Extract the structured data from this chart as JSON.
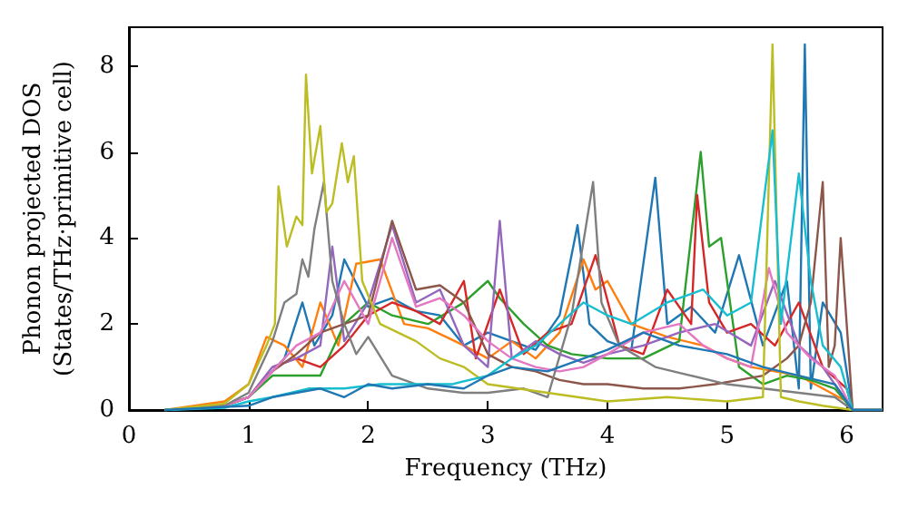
{
  "chart_data": {
    "type": "line",
    "xlabel": "Frequency (THz)",
    "ylabel": "Phonon projected DOS\n(States/THz·primitive cell)",
    "xlim": [
      0,
      6.3
    ],
    "xticks": [
      0,
      1,
      2,
      3,
      4,
      5,
      6
    ],
    "ylim": [
      0,
      8.9
    ],
    "yticks": [
      0,
      2,
      4,
      6,
      8
    ],
    "grid": false,
    "marker": "none",
    "line_style": "solid",
    "series": [
      {
        "color": "#1f77b4",
        "x": [
          0.3,
          0.8,
          1.0,
          1.2,
          1.3,
          1.45,
          1.55,
          1.7,
          1.8,
          2.0,
          2.2,
          2.4,
          2.6,
          2.8,
          3.0,
          3.2,
          3.4,
          3.6,
          3.75,
          3.85,
          4.0,
          4.2,
          4.4,
          4.5,
          4.7,
          4.9,
          5.1,
          5.3,
          5.5,
          5.6,
          5.65,
          5.7,
          5.8,
          5.95,
          6.05,
          6.3
        ],
        "values": [
          0,
          0.1,
          0.3,
          0.9,
          1.2,
          2.5,
          1.5,
          2.2,
          3.5,
          2.4,
          2.6,
          2.3,
          2.2,
          1.5,
          1.8,
          1.6,
          1.4,
          2.2,
          4.3,
          2.0,
          1.6,
          1.4,
          5.4,
          2.0,
          2.4,
          1.8,
          3.6,
          1.5,
          3.0,
          0.5,
          8.5,
          0.5,
          2.5,
          1.8,
          0,
          0
        ]
      },
      {
        "color": "#ff7f0e",
        "x": [
          0.3,
          0.8,
          1.0,
          1.15,
          1.3,
          1.45,
          1.6,
          1.75,
          1.9,
          2.1,
          2.3,
          2.5,
          2.8,
          3.0,
          3.2,
          3.4,
          3.6,
          3.8,
          3.9,
          4.0,
          4.2,
          4.5,
          4.8,
          5.0,
          5.2,
          5.4,
          5.6,
          5.8,
          6.0,
          6.05,
          6.3
        ],
        "values": [
          0,
          0.2,
          0.6,
          1.7,
          1.5,
          1.0,
          2.5,
          1.5,
          3.4,
          3.5,
          2.0,
          1.9,
          1.5,
          1.2,
          1.6,
          1.2,
          1.8,
          3.5,
          2.8,
          3.0,
          2.0,
          1.7,
          1.5,
          1.2,
          1.0,
          0.9,
          0.8,
          0.5,
          0.2,
          0,
          0
        ]
      },
      {
        "color": "#2ca02c",
        "x": [
          0.3,
          0.8,
          1.0,
          1.2,
          1.4,
          1.6,
          1.8,
          2.0,
          2.2,
          2.5,
          2.8,
          3.0,
          3.1,
          3.3,
          3.5,
          3.7,
          4.0,
          4.3,
          4.6,
          4.78,
          4.85,
          4.95,
          5.1,
          5.3,
          5.5,
          5.7,
          5.9,
          6.05,
          6.3
        ],
        "values": [
          0,
          0.1,
          0.3,
          0.8,
          0.8,
          0.8,
          2.0,
          2.5,
          2.2,
          2.0,
          2.5,
          3.0,
          2.6,
          2.0,
          1.5,
          1.3,
          1.2,
          1.2,
          1.6,
          6.0,
          3.8,
          4.0,
          1.0,
          0.6,
          0.8,
          0.7,
          0.5,
          0,
          0
        ]
      },
      {
        "color": "#d62728",
        "x": [
          1.2,
          1.4,
          1.6,
          1.8,
          2.0,
          2.2,
          2.4,
          2.6,
          2.8,
          2.9,
          3.1,
          3.3,
          3.5,
          3.7,
          3.9,
          4.1,
          4.3,
          4.5,
          4.7,
          4.75,
          4.85,
          5.0,
          5.2,
          5.4,
          5.6,
          5.8,
          6.0,
          6.05,
          6.3
        ],
        "values": [
          1.0,
          1.2,
          1.0,
          1.5,
          2.2,
          2.5,
          2.3,
          2.0,
          3.0,
          1.2,
          2.8,
          1.3,
          1.8,
          2.0,
          3.6,
          1.5,
          1.3,
          2.8,
          2.0,
          5.0,
          2.5,
          1.8,
          2.0,
          1.5,
          2.5,
          1.0,
          0.5,
          0,
          0
        ]
      },
      {
        "color": "#9467bd",
        "x": [
          0.3,
          0.8,
          1.0,
          1.2,
          1.4,
          1.6,
          1.7,
          1.8,
          2.0,
          2.2,
          2.4,
          2.6,
          2.8,
          3.0,
          3.1,
          3.2,
          3.4,
          3.6,
          3.8,
          4.0,
          4.3,
          4.6,
          4.9,
          5.2,
          5.4,
          5.6,
          5.8,
          6.05,
          6.3
        ],
        "values": [
          0,
          0.1,
          0.3,
          1.0,
          1.2,
          1.5,
          3.8,
          1.6,
          2.5,
          4.3,
          2.5,
          2.8,
          1.5,
          1.0,
          4.4,
          1.2,
          1.6,
          1.3,
          1.1,
          1.3,
          1.5,
          1.8,
          2.0,
          1.5,
          3.0,
          1.5,
          1.0,
          0,
          0
        ]
      },
      {
        "color": "#8c564b",
        "x": [
          0.3,
          0.8,
          1.0,
          1.2,
          1.4,
          1.6,
          1.8,
          2.0,
          2.2,
          2.4,
          2.6,
          2.8,
          3.0,
          3.2,
          3.4,
          3.6,
          3.8,
          4.0,
          4.3,
          4.6,
          4.9,
          5.1,
          5.3,
          5.5,
          5.6,
          5.7,
          5.8,
          5.85,
          5.9,
          5.95,
          6.05,
          6.3
        ],
        "values": [
          0,
          0.1,
          0.3,
          0.9,
          1.3,
          1.8,
          2.0,
          2.2,
          4.4,
          2.8,
          2.9,
          2.5,
          1.3,
          1.0,
          0.9,
          0.7,
          0.6,
          0.6,
          0.5,
          0.5,
          0.6,
          0.7,
          0.8,
          1.2,
          1.5,
          2.5,
          5.3,
          1.0,
          1.5,
          4.0,
          0,
          0
        ]
      },
      {
        "color": "#e377c2",
        "x": [
          0.3,
          0.8,
          1.0,
          1.2,
          1.4,
          1.6,
          1.8,
          2.0,
          2.2,
          2.4,
          2.6,
          2.8,
          3.0,
          3.2,
          3.4,
          3.6,
          3.8,
          4.0,
          4.3,
          4.6,
          4.8,
          5.0,
          5.2,
          5.35,
          5.5,
          5.7,
          5.9,
          6.05,
          6.3
        ],
        "values": [
          0,
          0.1,
          0.3,
          0.9,
          1.5,
          1.8,
          3.0,
          2.0,
          4.0,
          2.4,
          2.6,
          2.2,
          1.6,
          1.2,
          1.0,
          0.9,
          1.0,
          1.3,
          1.8,
          2.0,
          1.5,
          1.2,
          1.0,
          3.3,
          1.8,
          1.2,
          0.8,
          0,
          0
        ]
      },
      {
        "color": "#7f7f7f",
        "x": [
          0.3,
          0.8,
          1.0,
          1.2,
          1.3,
          1.4,
          1.45,
          1.5,
          1.55,
          1.63,
          1.7,
          1.8,
          1.9,
          2.0,
          2.2,
          2.5,
          2.8,
          3.0,
          3.3,
          3.5,
          3.7,
          3.88,
          3.95,
          4.1,
          4.4,
          4.7,
          5.0,
          5.3,
          5.6,
          5.9,
          6.05,
          6.3
        ],
        "values": [
          0,
          0.1,
          0.4,
          1.6,
          2.5,
          2.7,
          3.5,
          3.1,
          4.2,
          5.3,
          3.0,
          2.0,
          1.3,
          1.7,
          0.8,
          0.5,
          0.4,
          0.4,
          0.5,
          0.3,
          2.2,
          5.3,
          2.5,
          1.5,
          1.0,
          0.8,
          0.6,
          0.5,
          0.4,
          0.3,
          0,
          0
        ]
      },
      {
        "color": "#bcbd22",
        "x": [
          0.3,
          0.8,
          1.0,
          1.15,
          1.22,
          1.25,
          1.32,
          1.4,
          1.45,
          1.48,
          1.53,
          1.6,
          1.65,
          1.7,
          1.78,
          1.83,
          1.88,
          1.95,
          2.1,
          2.4,
          2.6,
          2.8,
          3.0,
          3.5,
          4.0,
          4.5,
          5.0,
          5.3,
          5.38,
          5.45,
          5.6,
          5.8,
          6.05,
          6.3
        ],
        "values": [
          0,
          0.15,
          0.6,
          1.5,
          2.0,
          5.2,
          3.8,
          4.5,
          4.3,
          7.8,
          5.5,
          6.6,
          4.6,
          4.8,
          6.2,
          5.3,
          5.9,
          3.0,
          2.0,
          1.6,
          1.2,
          1.0,
          0.6,
          0.4,
          0.2,
          0.3,
          0.2,
          0.3,
          8.5,
          0.3,
          0.2,
          0.1,
          0,
          0
        ]
      },
      {
        "color": "#17becf",
        "x": [
          0.3,
          0.8,
          1.0,
          1.2,
          1.5,
          1.8,
          2.1,
          2.4,
          2.7,
          3.0,
          3.2,
          3.4,
          3.6,
          3.8,
          4.0,
          4.2,
          4.5,
          4.8,
          5.0,
          5.2,
          5.38,
          5.45,
          5.6,
          5.7,
          5.8,
          5.95,
          6.05,
          6.3
        ],
        "values": [
          0,
          0.05,
          0.2,
          0.3,
          0.5,
          0.5,
          0.6,
          0.6,
          0.6,
          0.8,
          1.2,
          1.5,
          2.0,
          2.5,
          2.2,
          2.0,
          2.5,
          2.8,
          2.2,
          2.5,
          6.5,
          2.0,
          5.5,
          3.0,
          1.5,
          1.0,
          0,
          0
        ]
      },
      {
        "color": "#1f77b4",
        "x": [
          0.3,
          1.0,
          1.2,
          1.4,
          1.6,
          1.8,
          2.0,
          2.2,
          2.5,
          2.8,
          3.0,
          3.2,
          3.5,
          3.8,
          4.0,
          4.3,
          4.6,
          5.0,
          5.3,
          5.6,
          5.9,
          6.05,
          6.3
        ],
        "values": [
          0,
          0.1,
          0.3,
          0.4,
          0.5,
          0.3,
          0.6,
          0.5,
          0.6,
          0.5,
          0.8,
          1.0,
          0.9,
          1.2,
          1.4,
          1.8,
          1.5,
          1.3,
          1.0,
          0.8,
          0.6,
          0,
          0
        ]
      }
    ]
  }
}
